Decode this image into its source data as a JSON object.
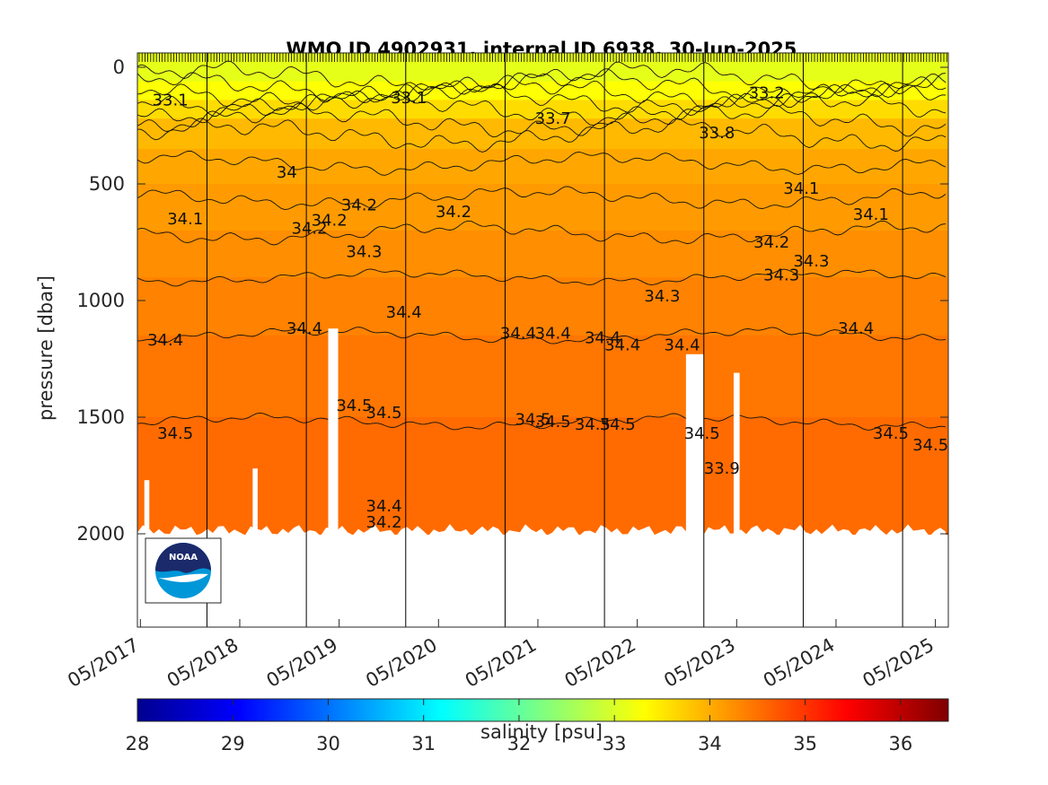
{
  "chart_data": {
    "type": "heatmap",
    "title": "WMO ID 4902931, internal ID 6938, 30-Jun-2025",
    "ylabel": "pressure [dbar]",
    "xlabel": "",
    "ylim": [
      0,
      2400
    ],
    "y_reversed": true,
    "yticks": [
      0,
      500,
      1000,
      1500,
      2000
    ],
    "xticks": [
      {
        "label": "05/2017",
        "value": 2017.33
      },
      {
        "label": "05/2018",
        "value": 2018.33
      },
      {
        "label": "05/2019",
        "value": 2019.33
      },
      {
        "label": "05/2020",
        "value": 2020.33
      },
      {
        "label": "05/2021",
        "value": 2021.33
      },
      {
        "label": "05/2022",
        "value": 2022.33
      },
      {
        "label": "05/2023",
        "value": 2023.33
      },
      {
        "label": "05/2024",
        "value": 2024.33
      },
      {
        "label": "05/2025",
        "value": 2025.33
      }
    ],
    "xlim": [
      2017.3,
      2025.46
    ],
    "year_boundaries": [
      2018.0,
      2019.0,
      2020.0,
      2021.0,
      2022.0,
      2023.0,
      2024.0,
      2025.0
    ],
    "colorbar": {
      "label": "salinity [psu]",
      "range": [
        28,
        36.5
      ],
      "ticks": [
        28,
        29,
        30,
        31,
        32,
        33,
        34,
        35,
        36
      ],
      "colormap": "jet"
    },
    "salinity_layers": [
      {
        "from_pressure": 0,
        "to_pressure": 60,
        "salinity": 33.1
      },
      {
        "from_pressure": 60,
        "to_pressure": 140,
        "salinity": 33.3
      },
      {
        "from_pressure": 140,
        "to_pressure": 220,
        "salinity": 33.6
      },
      {
        "from_pressure": 220,
        "to_pressure": 350,
        "salinity": 33.9
      },
      {
        "from_pressure": 350,
        "to_pressure": 500,
        "salinity": 34.05
      },
      {
        "from_pressure": 500,
        "to_pressure": 700,
        "salinity": 34.15
      },
      {
        "from_pressure": 700,
        "to_pressure": 900,
        "salinity": 34.25
      },
      {
        "from_pressure": 900,
        "to_pressure": 1150,
        "salinity": 34.35
      },
      {
        "from_pressure": 1150,
        "to_pressure": 1500,
        "salinity": 34.45
      },
      {
        "from_pressure": 1500,
        "to_pressure": 2000,
        "salinity": 34.55
      }
    ],
    "contours": [
      {
        "level": 33.1,
        "pressure": 45
      },
      {
        "level": 33.2,
        "pressure": 80
      },
      {
        "level": 33.3,
        "pressure": 110
      },
      {
        "level": 33.5,
        "pressure": 135
      },
      {
        "level": 33.7,
        "pressure": 175
      },
      {
        "level": 33.8,
        "pressure": 230
      },
      {
        "level": 33.9,
        "pressure": 290
      },
      {
        "level": 34.0,
        "pressure": 410
      },
      {
        "level": 34.1,
        "pressure": 560
      },
      {
        "level": 34.2,
        "pressure": 710
      },
      {
        "level": 34.3,
        "pressure": 900
      },
      {
        "level": 34.4,
        "pressure": 1150
      },
      {
        "level": 34.5,
        "pressure": 1520
      }
    ],
    "contour_labels": [
      {
        "text": "34.1",
        "x": 2017.6,
        "p": 650
      },
      {
        "text": "34",
        "x": 2018.7,
        "p": 450
      },
      {
        "text": "34.2",
        "x": 2018.85,
        "p": 690
      },
      {
        "text": "34.2",
        "x": 2019.05,
        "p": 655
      },
      {
        "text": "34.2",
        "x": 2019.35,
        "p": 590
      },
      {
        "text": "34.2",
        "x": 2020.3,
        "p": 620
      },
      {
        "text": "34.3",
        "x": 2019.4,
        "p": 790
      },
      {
        "text": "34.4",
        "x": 2017.4,
        "p": 1170
      },
      {
        "text": "34.4",
        "x": 2018.8,
        "p": 1120
      },
      {
        "text": "34.4",
        "x": 2019.8,
        "p": 1050
      },
      {
        "text": "34.4",
        "x": 2020.95,
        "p": 1140
      },
      {
        "text": "34.4",
        "x": 2021.3,
        "p": 1140
      },
      {
        "text": "34.4",
        "x": 2021.8,
        "p": 1160
      },
      {
        "text": "34.4",
        "x": 2022.0,
        "p": 1190
      },
      {
        "text": "34.4",
        "x": 2022.6,
        "p": 1190
      },
      {
        "text": "34.4",
        "x": 2024.35,
        "p": 1120
      },
      {
        "text": "34.3",
        "x": 2022.4,
        "p": 980
      },
      {
        "text": "34.2",
        "x": 2023.5,
        "p": 750
      },
      {
        "text": "34.3",
        "x": 2023.6,
        "p": 890
      },
      {
        "text": "34.3",
        "x": 2023.9,
        "p": 830
      },
      {
        "text": "34.1",
        "x": 2023.8,
        "p": 520
      },
      {
        "text": "34.1",
        "x": 2024.5,
        "p": 630
      },
      {
        "text": "34.5",
        "x": 2017.5,
        "p": 1570
      },
      {
        "text": "34.5",
        "x": 2019.3,
        "p": 1450
      },
      {
        "text": "34.5",
        "x": 2019.6,
        "p": 1480
      },
      {
        "text": "34.5",
        "x": 2021.1,
        "p": 1510
      },
      {
        "text": "34.5",
        "x": 2021.3,
        "p": 1520
      },
      {
        "text": "34.5",
        "x": 2021.7,
        "p": 1530
      },
      {
        "text": "34.5",
        "x": 2021.95,
        "p": 1530
      },
      {
        "text": "34.5",
        "x": 2022.8,
        "p": 1570
      },
      {
        "text": "34.5",
        "x": 2024.7,
        "p": 1570
      },
      {
        "text": "34.5",
        "x": 2025.1,
        "p": 1620
      },
      {
        "text": "33.7",
        "x": 2021.3,
        "p": 220
      },
      {
        "text": "33.8",
        "x": 2022.95,
        "p": 280
      },
      {
        "text": "33.9",
        "x": 2023.0,
        "p": 1720
      },
      {
        "text": "34.4",
        "x": 2019.6,
        "p": 1880
      },
      {
        "text": "34.2",
        "x": 2019.6,
        "p": 1950
      },
      {
        "text": "33.1",
        "x": 2017.45,
        "p": 140
      },
      {
        "text": "33.1",
        "x": 2019.85,
        "p": 130
      },
      {
        "text": "33.2",
        "x": 2023.45,
        "p": 110
      }
    ],
    "gaps": [
      {
        "x0": 2017.37,
        "x1": 2017.42,
        "p_from": 1770
      },
      {
        "x0": 2018.46,
        "x1": 2018.51,
        "p_from": 1720
      },
      {
        "x0": 2019.22,
        "x1": 2019.32,
        "p_from": 1120
      },
      {
        "x0": 2022.82,
        "x1": 2023.0,
        "p_from": 1230
      },
      {
        "x0": 2023.3,
        "x1": 2023.36,
        "p_from": 1310
      }
    ]
  },
  "logo": {
    "text": "NOAA"
  }
}
